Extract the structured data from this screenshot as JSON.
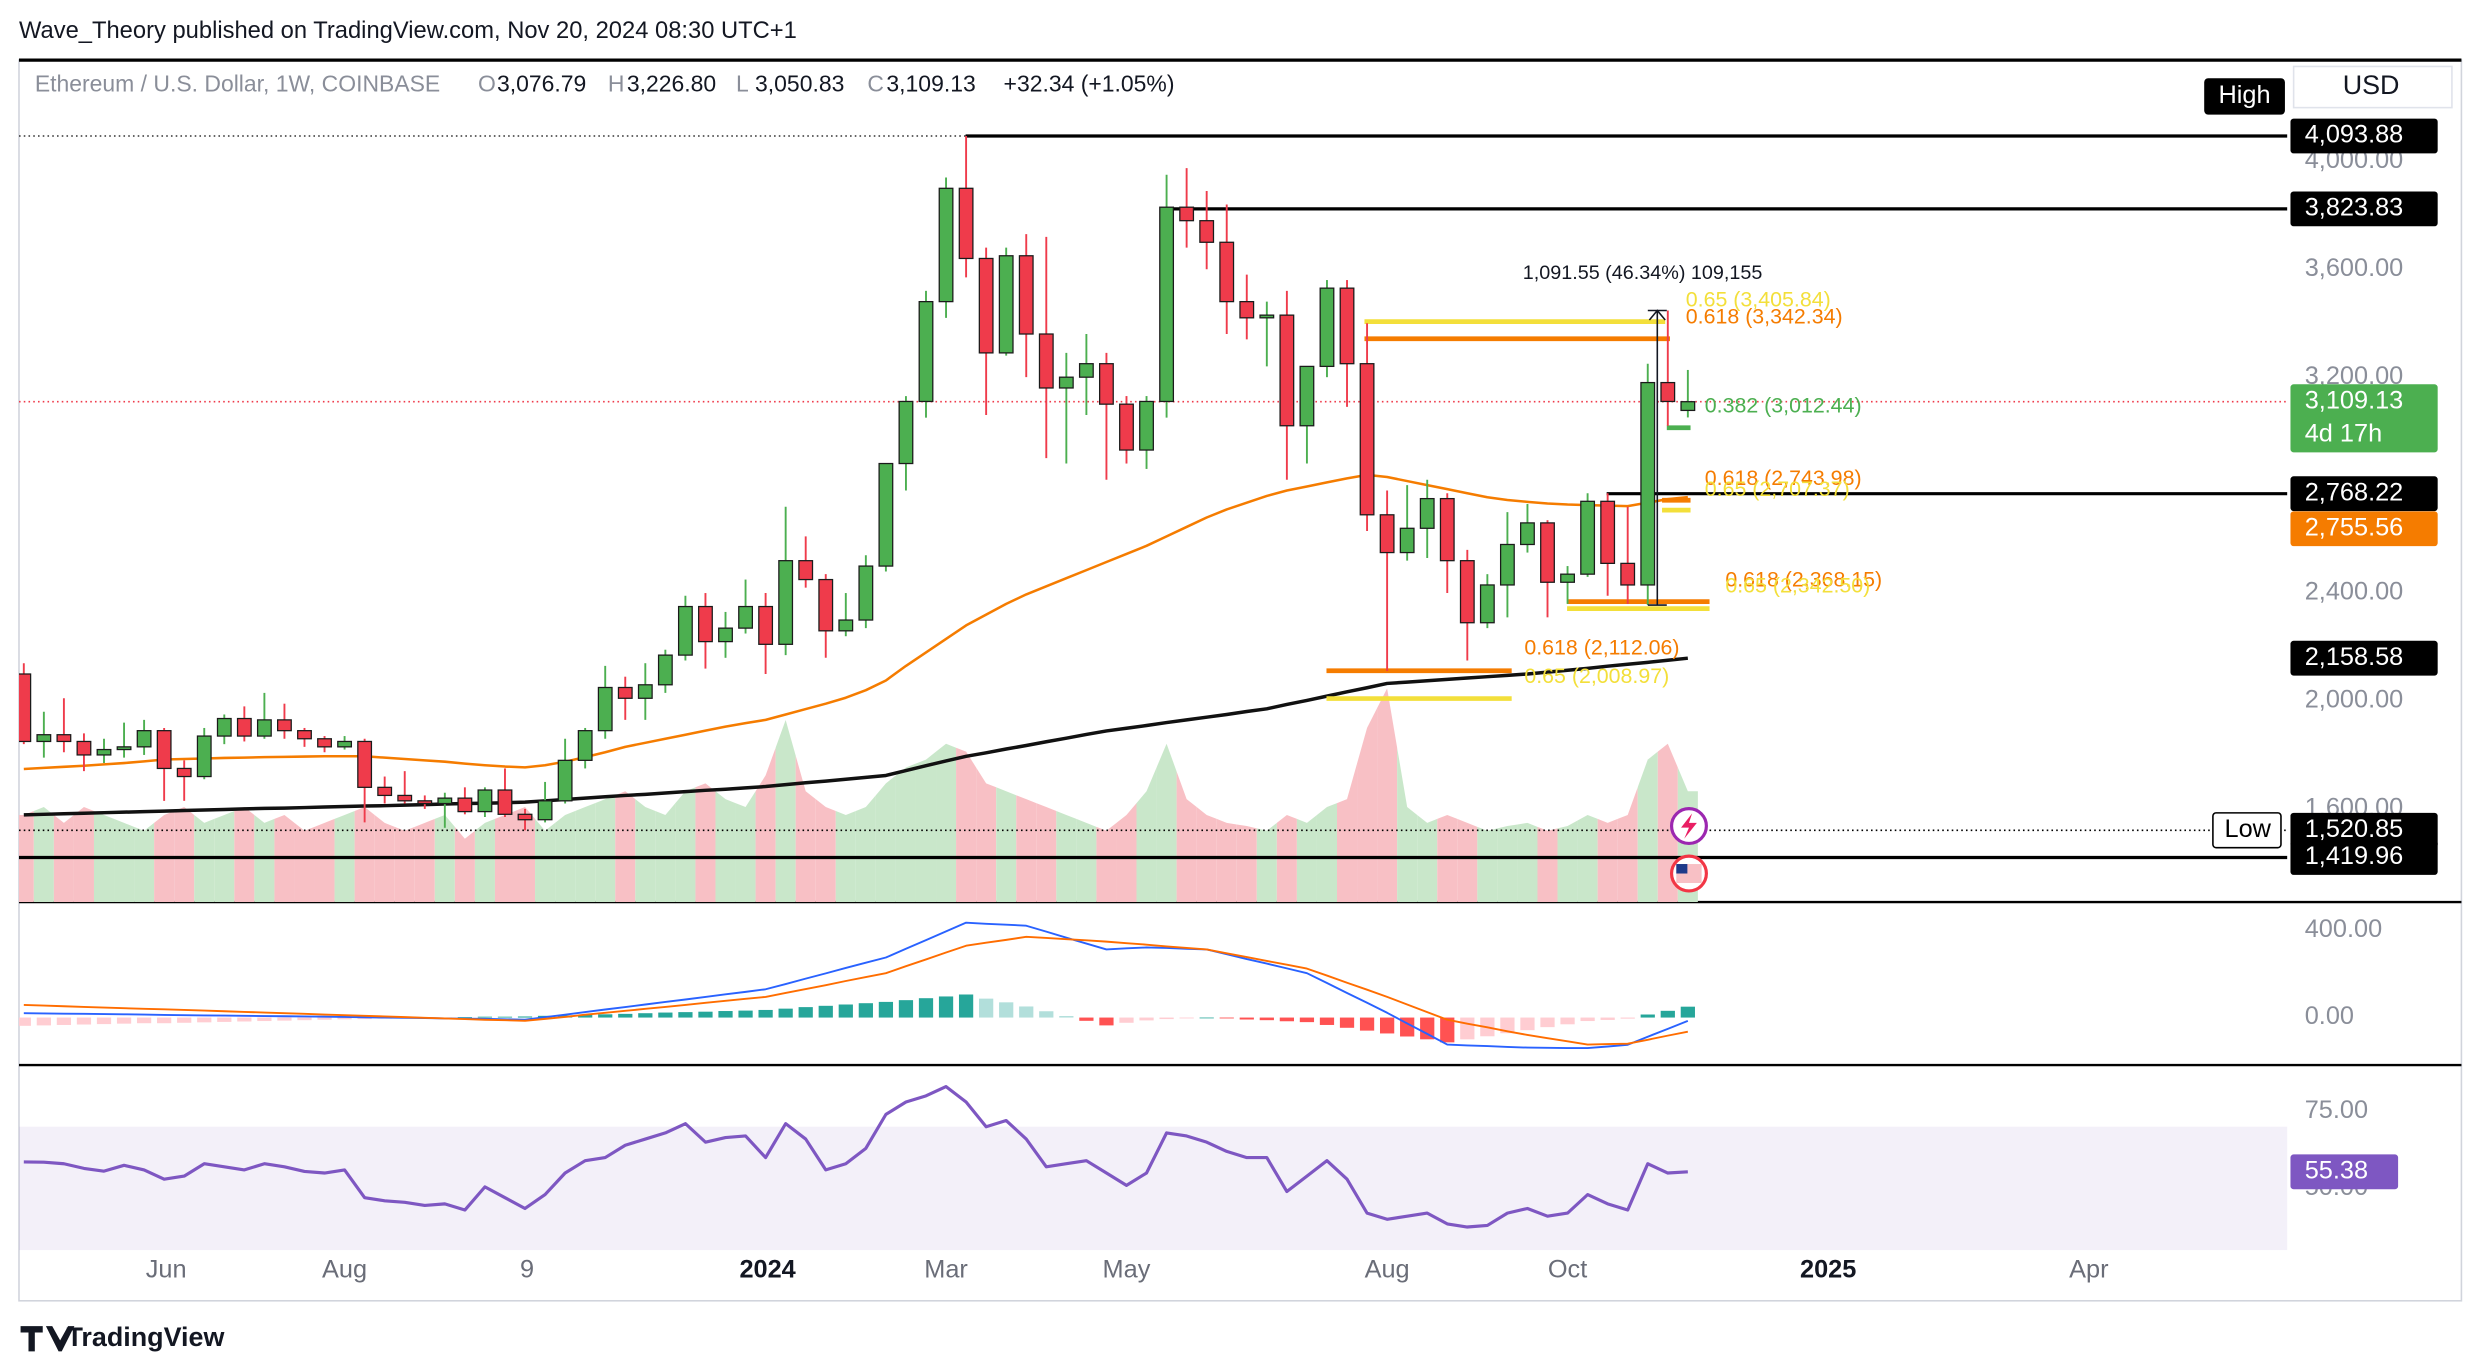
{
  "header": "Wave_Theory published on TradingView.com, Nov 20, 2024 08:30 UTC+1",
  "footer": "TradingView",
  "chart_data": {
    "type": "candlestick",
    "currency": "USD",
    "legend": {
      "symbol": "Ethereum / U.S. Dollar, 1W, COINBASE",
      "fields": [
        {
          "key": "O",
          "value": "3,076.79"
        },
        {
          "key": "H",
          "value": "3,226.80"
        },
        {
          "key": "L",
          "value": "3,050.83"
        },
        {
          "key": "C",
          "value": "3,109.13"
        }
      ],
      "change": "+32.34 (+1.05%)"
    },
    "xlim": [
      -0.24,
      112.9
    ],
    "xticks": [
      {
        "value": 7.1,
        "label": "Jun"
      },
      {
        "value": 16,
        "label": "Aug"
      },
      {
        "value": 25.1,
        "label": "9"
      },
      {
        "value": 37.1,
        "label": "2024"
      },
      {
        "value": 46,
        "label": "Mar"
      },
      {
        "value": 55,
        "label": "May"
      },
      {
        "value": 68,
        "label": "Aug"
      },
      {
        "value": 77,
        "label": "Oct"
      },
      {
        "value": 90,
        "label": "2025"
      },
      {
        "value": 103,
        "label": "Apr"
      }
    ],
    "ylim": [
      1255,
      4375
    ],
    "yticks": [
      {
        "value": 1600,
        "label": "1,600.00"
      },
      {
        "value": 2000,
        "label": "2,000.00"
      },
      {
        "value": 2400,
        "label": "2,400.00"
      },
      {
        "value": 3200,
        "label": "3,200.00"
      },
      {
        "value": 3600,
        "label": "3,600.00"
      },
      {
        "value": 4000,
        "label": "4,000.00"
      }
    ],
    "up_color": "#4caf50",
    "down_color": "#ef3b4b",
    "ohlc": [
      [
        2100,
        2140,
        1840,
        1850
      ],
      [
        1850,
        1960,
        1790,
        1875
      ],
      [
        1875,
        2010,
        1810,
        1850
      ],
      [
        1850,
        1880,
        1740,
        1800
      ],
      [
        1800,
        1860,
        1770,
        1820
      ],
      [
        1820,
        1920,
        1790,
        1830
      ],
      [
        1830,
        1930,
        1800,
        1890
      ],
      [
        1890,
        1900,
        1630,
        1750
      ],
      [
        1750,
        1780,
        1630,
        1720
      ],
      [
        1720,
        1900,
        1710,
        1870
      ],
      [
        1870,
        1950,
        1840,
        1935
      ],
      [
        1935,
        1980,
        1850,
        1870
      ],
      [
        1870,
        2030,
        1860,
        1930
      ],
      [
        1930,
        1990,
        1860,
        1890
      ],
      [
        1890,
        1900,
        1830,
        1860
      ],
      [
        1860,
        1870,
        1810,
        1830
      ],
      [
        1830,
        1870,
        1820,
        1850
      ],
      [
        1850,
        1860,
        1550,
        1680
      ],
      [
        1680,
        1720,
        1620,
        1650
      ],
      [
        1650,
        1740,
        1620,
        1630
      ],
      [
        1630,
        1650,
        1600,
        1620
      ],
      [
        1620,
        1660,
        1530,
        1640
      ],
      [
        1640,
        1680,
        1580,
        1590
      ],
      [
        1590,
        1680,
        1570,
        1670
      ],
      [
        1670,
        1750,
        1570,
        1580
      ],
      [
        1580,
        1600,
        1520.85,
        1560
      ],
      [
        1560,
        1700,
        1550,
        1630
      ],
      [
        1630,
        1860,
        1620,
        1780
      ],
      [
        1780,
        1900,
        1750,
        1890
      ],
      [
        1890,
        2130,
        1860,
        2050
      ],
      [
        2050,
        2090,
        1930,
        2010
      ],
      [
        2010,
        2140,
        1930,
        2060
      ],
      [
        2060,
        2190,
        2030,
        2170
      ],
      [
        2170,
        2390,
        2150,
        2350
      ],
      [
        2350,
        2400,
        2120,
        2220
      ],
      [
        2220,
        2330,
        2160,
        2270
      ],
      [
        2270,
        2450,
        2250,
        2350
      ],
      [
        2350,
        2400,
        2100,
        2210
      ],
      [
        2210,
        2720,
        2170,
        2520
      ],
      [
        2520,
        2610,
        2420,
        2450
      ],
      [
        2450,
        2470,
        2160,
        2260
      ],
      [
        2260,
        2400,
        2240,
        2300
      ],
      [
        2300,
        2540,
        2270,
        2500
      ],
      [
        2500,
        2880,
        2480,
        2880
      ],
      [
        2880,
        3130,
        2780,
        3110
      ],
      [
        3110,
        3520,
        3050,
        3480
      ],
      [
        3480,
        3940,
        3420,
        3900
      ],
      [
        3900,
        4093.88,
        3570,
        3640
      ],
      [
        3640,
        3680,
        3060,
        3290
      ],
      [
        3290,
        3680,
        3280,
        3650
      ],
      [
        3650,
        3730,
        3200,
        3360
      ],
      [
        3360,
        3720,
        2900,
        3160
      ],
      [
        3160,
        3290,
        2880,
        3200
      ],
      [
        3200,
        3360,
        3060,
        3250
      ],
      [
        3250,
        3290,
        2820,
        3100
      ],
      [
        3100,
        3130,
        2880,
        2930
      ],
      [
        2930,
        3130,
        2860,
        3110
      ],
      [
        3110,
        3950,
        3050,
        3830
      ],
      [
        3830,
        3975,
        3680,
        3780
      ],
      [
        3780,
        3890,
        3600,
        3700
      ],
      [
        3700,
        3840,
        3360,
        3480
      ],
      [
        3480,
        3580,
        3340,
        3420
      ],
      [
        3420,
        3480,
        3240,
        3430
      ],
      [
        3430,
        3520,
        2820,
        3020
      ],
      [
        3020,
        3240,
        2880,
        3240
      ],
      [
        3240,
        3560,
        3200,
        3530
      ],
      [
        3530,
        3560,
        3090,
        3250
      ],
      [
        3250,
        3400,
        2630,
        2690
      ],
      [
        2690,
        2780,
        2111,
        2550
      ],
      [
        2550,
        2800,
        2520,
        2640
      ],
      [
        2640,
        2820,
        2530,
        2750
      ],
      [
        2750,
        2770,
        2400,
        2520
      ],
      [
        2520,
        2560,
        2150,
        2290
      ],
      [
        2290,
        2470,
        2270,
        2430
      ],
      [
        2430,
        2700,
        2310,
        2580
      ],
      [
        2580,
        2730,
        2550,
        2660
      ],
      [
        2660,
        2670,
        2310,
        2440
      ],
      [
        2440,
        2500,
        2360,
        2470
      ],
      [
        2470,
        2770,
        2460,
        2740
      ],
      [
        2740,
        2770,
        2390,
        2510
      ],
      [
        2510,
        2720,
        2360,
        2430
      ],
      [
        2430,
        3250,
        2355.6,
        3180
      ],
      [
        3180,
        3447.15,
        3020,
        3110
      ],
      [
        3076.79,
        3226.8,
        3050.83,
        3109.13
      ]
    ],
    "last": {
      "label": "3,109.13",
      "countdown": "4d 17h"
    },
    "volume": {
      "up_color": "#c9e7ca",
      "down_color": "#f8c0c5",
      "values": [
        55,
        60,
        50,
        60,
        55,
        50,
        45,
        55,
        60,
        50,
        55,
        60,
        50,
        55,
        45,
        50,
        55,
        60,
        50,
        45,
        50,
        55,
        40,
        50,
        55,
        60,
        45,
        55,
        60,
        65,
        70,
        60,
        55,
        70,
        75,
        65,
        60,
        80,
        115,
        70,
        60,
        55,
        60,
        75,
        85,
        90,
        100,
        95,
        75,
        70,
        65,
        60,
        55,
        50,
        45,
        55,
        70,
        100,
        65,
        55,
        50,
        48,
        45,
        55,
        50,
        60,
        65,
        110,
        135,
        60,
        50,
        55,
        50,
        45,
        48,
        50,
        45,
        48,
        55,
        50,
        55,
        90,
        100,
        70
      ]
    },
    "ema": {
      "color": "#f57c00",
      "last_label": "2,755.56",
      "values": [
        1748,
        1752,
        1756,
        1760,
        1765,
        1770,
        1776,
        1783,
        1785,
        1787,
        1789,
        1790,
        1792,
        1793,
        1794,
        1795,
        1795,
        1795,
        1790,
        1785,
        1780,
        1775,
        1768,
        1762,
        1757,
        1754,
        1762,
        1775,
        1792,
        1810,
        1830,
        1845,
        1860,
        1875,
        1890,
        1905,
        1918,
        1930,
        1950,
        1970,
        1990,
        2012,
        2040,
        2076,
        2130,
        2180,
        2230,
        2280,
        2320,
        2360,
        2395,
        2425,
        2455,
        2485,
        2515,
        2545,
        2575,
        2610,
        2645,
        2680,
        2710,
        2735,
        2760,
        2780,
        2795,
        2810,
        2825,
        2838,
        2830,
        2815,
        2800,
        2785,
        2770,
        2755,
        2745,
        2738,
        2732,
        2728,
        2726,
        2724,
        2722,
        2735,
        2748,
        2755.56
      ]
    },
    "sma": {
      "color": "#111111",
      "last_label": "2,158.58",
      "values": [
        1578,
        1580,
        1582,
        1584,
        1586,
        1588,
        1590,
        1592,
        1594,
        1596,
        1598,
        1600,
        1602,
        1603,
        1605,
        1607,
        1609,
        1611,
        1612,
        1614,
        1616,
        1618,
        1620,
        1621,
        1623,
        1625,
        1630,
        1635,
        1640,
        1645,
        1650,
        1654,
        1659,
        1664,
        1669,
        1673,
        1678,
        1683,
        1690,
        1697,
        1703,
        1710,
        1717,
        1724,
        1742,
        1760,
        1778,
        1795,
        1808,
        1822,
        1835,
        1849,
        1862,
        1876,
        1889,
        1899,
        1909,
        1920,
        1930,
        1940,
        1950,
        1961,
        1971,
        1987,
        2002,
        2018,
        2034,
        2049,
        2065,
        2070,
        2075,
        2080,
        2085,
        2090,
        2095,
        2100,
        2107,
        2114,
        2121,
        2129,
        2136,
        2143,
        2151,
        2158.58
      ]
    },
    "levels": [
      {
        "value": 4093.88,
        "label": "4,093.88",
        "tag": "High"
      },
      {
        "value": 3823.83,
        "label": "3,823.83"
      },
      {
        "value": 2768.22,
        "label": "2,768.22"
      },
      {
        "value": 1520.85,
        "label": "1,520.85",
        "tag": "Low"
      },
      {
        "value": 1419.96,
        "label": "1,419.96"
      }
    ],
    "fibs": [
      {
        "label": "0.65 (3,405.84)",
        "value": 3405.84,
        "color": "#f3df3a"
      },
      {
        "label": "0.618 (3,342.34)",
        "value": 3342.34,
        "color": "#f57c00"
      },
      {
        "label": "0.382 (3,012.44)",
        "value": 3012.44,
        "color": "#4caf50"
      },
      {
        "label": "0.618 (2,743.98)",
        "value": 2743.98,
        "color": "#f57c00"
      },
      {
        "label": "0.65 (2,707.37)",
        "value": 2707.37,
        "color": "#f3df3a"
      },
      {
        "label": "0.618 (2,368.15)",
        "value": 2368.15,
        "color": "#f57c00"
      },
      {
        "label": "0.65 (2,342.50)",
        "value": 2342.5,
        "color": "#f3df3a"
      },
      {
        "label": "0.618 (2,112.06)",
        "value": 2112.06,
        "color": "#f57c00"
      },
      {
        "label": "0.65 (2,008.97)",
        "value": 2008.97,
        "color": "#f3df3a"
      }
    ],
    "measure": {
      "label": "1,091.55 (46.34%) 109,155",
      "from": 2355.6,
      "to": 3447.15
    },
    "macd": {
      "ylim": [
        -218,
        531
      ],
      "yticks": [
        {
          "value": 0,
          "label": "0.00"
        },
        {
          "value": 400,
          "label": "400.00"
        }
      ],
      "macd_color": "#2962ff",
      "signal_color": "#ff6d00",
      "hist_colors": [
        "#26a69a",
        "#b2dfdb",
        "#ffcdd2",
        "#ff5252"
      ],
      "macd": [
        20,
        19,
        18,
        17,
        16,
        15,
        14,
        12,
        11,
        10,
        9,
        8,
        7,
        6,
        5,
        4,
        3,
        1,
        0,
        -1,
        -2,
        -4,
        -5,
        -6,
        -8,
        -10,
        2,
        13,
        25,
        37,
        48,
        60,
        72,
        83,
        95,
        107,
        118,
        130,
        154,
        179,
        203,
        228,
        252,
        276,
        316,
        356,
        396,
        436,
        431,
        427,
        422,
        395,
        367,
        340,
        313,
        318,
        322,
        320,
        316,
        313,
        291,
        269,
        248,
        226,
        204,
        159,
        113,
        68,
        22,
        -27,
        -75,
        -124,
        -128,
        -131,
        -135,
        -138,
        -139,
        -140,
        -140,
        -133,
        -125,
        -88,
        -52,
        -15
      ],
      "signal": [
        58,
        55,
        52,
        49,
        46,
        43,
        40,
        38,
        35,
        32,
        29,
        26,
        23,
        20,
        17,
        14,
        11,
        8,
        5,
        2,
        -1,
        -4,
        -7,
        -10,
        -12,
        -15,
        -6,
        3,
        13,
        22,
        31,
        40,
        49,
        58,
        68,
        77,
        86,
        95,
        113,
        131,
        149,
        168,
        186,
        204,
        236,
        267,
        299,
        330,
        344,
        357,
        371,
        366,
        360,
        355,
        349,
        342,
        335,
        327,
        320,
        313,
        295,
        278,
        260,
        243,
        225,
        193,
        160,
        128,
        95,
        60,
        25,
        -10,
        -28,
        -45,
        -63,
        -80,
        -95,
        -109,
        -124,
        -122,
        -120,
        -102,
        -83,
        -65
      ],
      "histogram": [
        -38,
        -36,
        -34,
        -32,
        -30,
        -28,
        -26,
        -26,
        -24,
        -22,
        -20,
        -18,
        -16,
        -14,
        -12,
        -10,
        -8,
        -7,
        -5,
        -3,
        -1,
        0,
        2,
        4,
        4,
        5,
        8,
        10,
        12,
        15,
        17,
        20,
        23,
        25,
        27,
        30,
        32,
        35,
        41,
        48,
        54,
        60,
        66,
        72,
        80,
        89,
        97,
        106,
        87,
        70,
        51,
        29,
        7,
        -15,
        -36,
        -24,
        -13,
        -7,
        -4,
        0,
        -4,
        -9,
        -12,
        -17,
        -21,
        -34,
        -47,
        -60,
        -73,
        -87,
        -100,
        -114,
        -100,
        -86,
        -72,
        -58,
        -44,
        -31,
        -16,
        -11,
        -5,
        14,
        31,
        50
      ]
    },
    "rsi": {
      "ylim": [
        30,
        90
      ],
      "yticks": [
        {
          "value": 50,
          "label": "50.00"
        },
        {
          "value": 75,
          "label": "75.00"
        }
      ],
      "band": [
        30,
        70
      ],
      "color": "#7e57c2",
      "values": [
        58.6,
        58.5,
        58,
        56.5,
        55.6,
        57.5,
        56,
        53,
        54,
        58,
        57,
        56,
        58,
        57,
        55.5,
        55,
        56,
        47,
        46,
        45.5,
        44.5,
        45,
        43,
        50.5,
        47,
        43.5,
        48,
        55,
        59,
        60,
        64,
        66,
        68,
        71,
        65,
        66.5,
        67,
        60,
        71,
        66,
        56,
        58,
        63,
        74,
        78,
        80,
        83,
        78,
        70,
        72,
        66,
        57,
        58,
        59,
        55,
        51,
        55,
        68,
        67,
        65,
        62,
        60,
        60,
        49,
        54,
        59,
        53,
        42,
        40,
        41,
        42,
        38.5,
        37.5,
        38,
        42,
        43.5,
        41,
        42,
        48,
        45,
        43,
        58,
        55,
        55.38
      ]
    }
  }
}
